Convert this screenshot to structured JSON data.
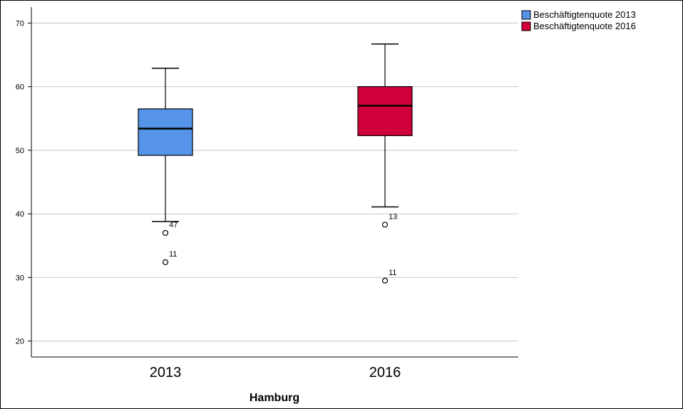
{
  "chart_data": {
    "type": "box",
    "title": "",
    "xlabel": "Hamburg",
    "ylabel": "",
    "ylim": [
      17.5,
      72.5
    ],
    "yticks": [
      20,
      30,
      40,
      50,
      60,
      70
    ],
    "grid": true,
    "legend_position": "top-right",
    "categories": [
      "2013",
      "2016"
    ],
    "series": [
      {
        "name": "Beschäftigtenquote 2013",
        "color": "#5594E8",
        "whisker_low": 38.8,
        "q1": 49.2,
        "median": 53.4,
        "q3": 56.5,
        "whisker_high": 62.9,
        "outliers": [
          {
            "value": 37.0,
            "label": "47"
          },
          {
            "value": 32.4,
            "label": "11"
          }
        ]
      },
      {
        "name": "Beschäftigtenquote 2016",
        "color": "#D2003A",
        "whisker_low": 41.1,
        "q1": 52.3,
        "median": 57.0,
        "q3": 60.0,
        "whisker_high": 66.7,
        "outliers": [
          {
            "value": 38.3,
            "label": "13"
          },
          {
            "value": 29.5,
            "label": "11"
          }
        ]
      }
    ]
  }
}
